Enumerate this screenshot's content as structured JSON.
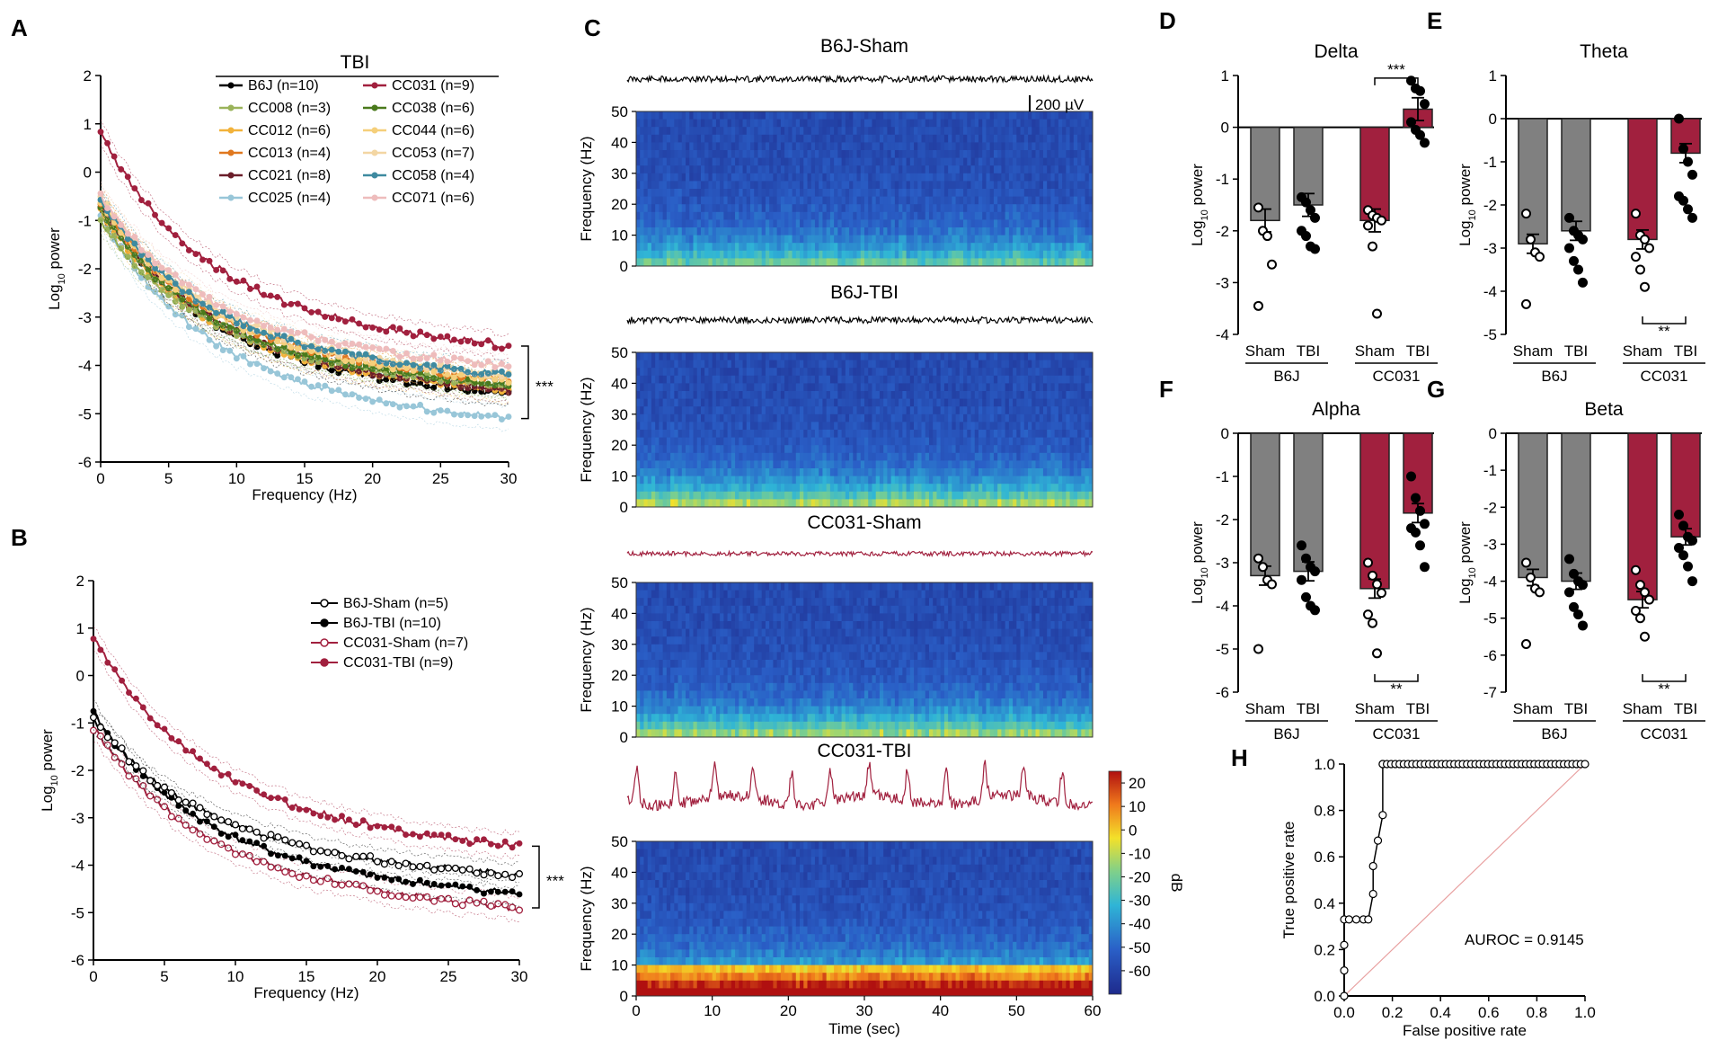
{
  "chart_data": [
    {
      "panel": "A",
      "type": "line",
      "title": "TBI",
      "xlabel": "Frequency (Hz)",
      "ylabel": "Log10 power",
      "xlim": [
        0,
        30
      ],
      "ylim": [
        -6,
        2
      ],
      "xticks": [
        "0",
        "5",
        "10",
        "15",
        "20",
        "25",
        "30"
      ],
      "yticks": [
        "2",
        "1",
        "0",
        "-1",
        "-2",
        "-3",
        "-4",
        "-5",
        "-6"
      ],
      "significance": "***",
      "series": [
        {
          "name": "B6J (n=10)",
          "color": "#000000",
          "start": -0.7,
          "end": -4.6
        },
        {
          "name": "CC008 (n=3)",
          "color": "#9ab35a",
          "start": -1.0,
          "end": -4.4
        },
        {
          "name": "CC012 (n=6)",
          "color": "#f2b23a",
          "start": -0.8,
          "end": -4.5
        },
        {
          "name": "CC013 (n=4)",
          "color": "#e0781f",
          "start": -0.6,
          "end": -4.3
        },
        {
          "name": "CC021 (n=8)",
          "color": "#6b1e2a",
          "start": -0.7,
          "end": -4.5
        },
        {
          "name": "CC025 (n=4)",
          "color": "#98c6d8",
          "start": -0.9,
          "end": -5.1
        },
        {
          "name": "CC031 (n=9)",
          "color": "#a1203e",
          "start": 0.8,
          "end": -3.6
        },
        {
          "name": "CC038 (n=6)",
          "color": "#4a7a1c",
          "start": -0.8,
          "end": -4.4
        },
        {
          "name": "CC044 (n=6)",
          "color": "#f5cf7a",
          "start": -0.6,
          "end": -4.3
        },
        {
          "name": "CC053 (n=7)",
          "color": "#f3d6a3",
          "start": -0.5,
          "end": -4.2
        },
        {
          "name": "CC058 (n=4)",
          "color": "#3e8aa0",
          "start": -0.6,
          "end": -4.2
        },
        {
          "name": "CC071 (n=6)",
          "color": "#eebcbc",
          "start": -0.5,
          "end": -4.0
        }
      ]
    },
    {
      "panel": "B",
      "type": "line",
      "xlabel": "Frequency (Hz)",
      "ylabel": "Log10 power",
      "xlim": [
        0,
        30
      ],
      "ylim": [
        -6,
        2
      ],
      "xticks": [
        "0",
        "5",
        "10",
        "15",
        "20",
        "25",
        "30"
      ],
      "yticks": [
        "2",
        "1",
        "0",
        "-1",
        "-2",
        "-3",
        "-4",
        "-5",
        "-6"
      ],
      "significance": "***",
      "series": [
        {
          "name": "B6J-Sham (n=5)",
          "color": "#000000",
          "marker": "open",
          "start": -0.9,
          "end": -4.2
        },
        {
          "name": "B6J-TBI (n=10)",
          "color": "#000000",
          "marker": "filled",
          "start": -0.8,
          "end": -4.6
        },
        {
          "name": "CC031-Sham (n=7)",
          "color": "#a1203e",
          "marker": "open",
          "start": -1.1,
          "end": -4.9
        },
        {
          "name": "CC031-TBI (n=9)",
          "color": "#a1203e",
          "marker": "filled",
          "start": 0.8,
          "end": -3.6
        }
      ]
    },
    {
      "panel": "C",
      "type": "heatmap",
      "titles": [
        "B6J-Sham",
        "B6J-TBI",
        "CC031-Sham",
        "CC031-TBI"
      ],
      "ylabel": "Frequency (Hz)",
      "xlabel": "Time (sec)",
      "yticks": [
        "0",
        "10",
        "20",
        "30",
        "40",
        "50"
      ],
      "xticks": [
        "0",
        "10",
        "20",
        "30",
        "40",
        "50",
        "60"
      ],
      "scalebar": "200 µV",
      "colorbar": {
        "label": "dB",
        "ticks": [
          "20",
          "10",
          "0",
          "-10",
          "-20",
          "-30",
          "-40",
          "-50",
          "-60"
        ]
      }
    },
    {
      "panel": "D",
      "type": "bar",
      "title": "Delta",
      "ylabel": "Log10 power",
      "ylim": [
        -4,
        1
      ],
      "yticks": [
        "1",
        "0",
        "-1",
        "-2",
        "-3",
        "-4"
      ],
      "categories": [
        "Sham",
        "TBI",
        "Sham",
        "TBI"
      ],
      "groups": [
        "B6J",
        "CC031"
      ],
      "values": [
        -1.8,
        -1.5,
        -1.8,
        0.35
      ],
      "significance": "***",
      "points": [
        [
          -1.55,
          -2.0,
          -2.1,
          -2.65,
          -3.45
        ],
        [
          -1.35,
          -1.45,
          -1.6,
          -1.75,
          -2.0,
          -2.1,
          -2.3,
          -2.35
        ],
        [
          -1.6,
          -1.7,
          -1.75,
          -1.8,
          -1.9,
          -2.3,
          -3.6
        ],
        [
          0.9,
          0.75,
          0.7,
          0.45,
          0.1,
          -0.05,
          -0.15,
          -0.3
        ]
      ]
    },
    {
      "panel": "E",
      "type": "bar",
      "title": "Theta",
      "ylabel": "Log10 power",
      "ylim": [
        -5,
        1
      ],
      "yticks": [
        "1",
        "0",
        "-1",
        "-2",
        "-3",
        "-4",
        "-5"
      ],
      "categories": [
        "Sham",
        "TBI",
        "Sham",
        "TBI"
      ],
      "groups": [
        "B6J",
        "CC031"
      ],
      "values": [
        -2.9,
        -2.6,
        -2.8,
        -0.8
      ],
      "significance": "**",
      "points": [
        [
          -2.2,
          -2.8,
          -3.1,
          -3.2,
          -4.3
        ],
        [
          -2.3,
          -2.6,
          -2.7,
          -2.8,
          -3.0,
          -3.3,
          -3.5,
          -3.8
        ],
        [
          -2.2,
          -2.7,
          -2.8,
          -3.0,
          -3.2,
          -3.5,
          -3.9
        ],
        [
          0.0,
          -0.7,
          -1.0,
          -1.3,
          -1.8,
          -1.9,
          -2.1,
          -2.3
        ]
      ]
    },
    {
      "panel": "F",
      "type": "bar",
      "title": "Alpha",
      "ylabel": "Log10 power",
      "ylim": [
        -6,
        0
      ],
      "yticks": [
        "0",
        "-1",
        "-2",
        "-3",
        "-4",
        "-5",
        "-6"
      ],
      "categories": [
        "Sham",
        "TBI",
        "Sham",
        "TBI"
      ],
      "groups": [
        "B6J",
        "CC031"
      ],
      "values": [
        -3.3,
        -3.2,
        -3.6,
        -1.85
      ],
      "significance": "**",
      "points": [
        [
          -2.9,
          -3.1,
          -3.4,
          -3.5,
          -5.0
        ],
        [
          -2.6,
          -2.9,
          -3.1,
          -3.2,
          -3.4,
          -3.8,
          -4.0,
          -4.1
        ],
        [
          -3.0,
          -3.3,
          -3.5,
          -3.7,
          -4.2,
          -4.4,
          -5.1
        ],
        [
          -1.0,
          -1.5,
          -1.8,
          -2.1,
          -2.2,
          -2.3,
          -2.6,
          -3.1
        ]
      ]
    },
    {
      "panel": "G",
      "type": "bar",
      "title": "Beta",
      "ylabel": "Log10 power",
      "ylim": [
        -7,
        0
      ],
      "yticks": [
        "0",
        "-1",
        "-2",
        "-3",
        "-4",
        "-5",
        "-6",
        "-7"
      ],
      "categories": [
        "Sham",
        "TBI",
        "Sham",
        "TBI"
      ],
      "groups": [
        "B6J",
        "CC031"
      ],
      "values": [
        -3.9,
        -4.0,
        -4.5,
        -2.8
      ],
      "significance": "**",
      "points": [
        [
          -3.5,
          -3.9,
          -4.2,
          -4.3,
          -5.7
        ],
        [
          -3.4,
          -3.8,
          -4.0,
          -4.1,
          -4.3,
          -4.7,
          -4.9,
          -5.2
        ],
        [
          -3.7,
          -4.1,
          -4.3,
          -4.5,
          -4.8,
          -5.0,
          -5.5
        ],
        [
          -2.2,
          -2.5,
          -2.8,
          -2.9,
          -3.1,
          -3.3,
          -3.6,
          -4.0
        ]
      ]
    },
    {
      "panel": "H",
      "type": "line",
      "xlabel": "False positive rate",
      "ylabel": "True positive rate",
      "xlim": [
        0,
        1
      ],
      "ylim": [
        0,
        1
      ],
      "xticks": [
        "0.0",
        "0.2",
        "0.4",
        "0.6",
        "0.8",
        "1.0"
      ],
      "yticks": [
        "1.0",
        "0.8",
        "0.6",
        "0.4",
        "0.2",
        "0.0"
      ],
      "annotation": "AUROC = 0.9145",
      "x": [
        0,
        0,
        0,
        0,
        0.02,
        0.05,
        0.08,
        0.1,
        0.12,
        0.12,
        0.14,
        0.16,
        0.16,
        0.2,
        0.4,
        0.6,
        0.8,
        1.0
      ],
      "y": [
        0,
        0.11,
        0.22,
        0.33,
        0.33,
        0.33,
        0.33,
        0.33,
        0.44,
        0.56,
        0.67,
        0.78,
        1.0,
        1.0,
        1.0,
        1.0,
        1.0,
        1.0
      ]
    }
  ],
  "panel_labels": {
    "A": "A",
    "B": "B",
    "C": "C",
    "D": "D",
    "E": "E",
    "F": "F",
    "G": "G",
    "H": "H"
  },
  "colors": {
    "sham_grey": "#808080",
    "cc031_red": "#a1203e",
    "black": "#000000"
  }
}
